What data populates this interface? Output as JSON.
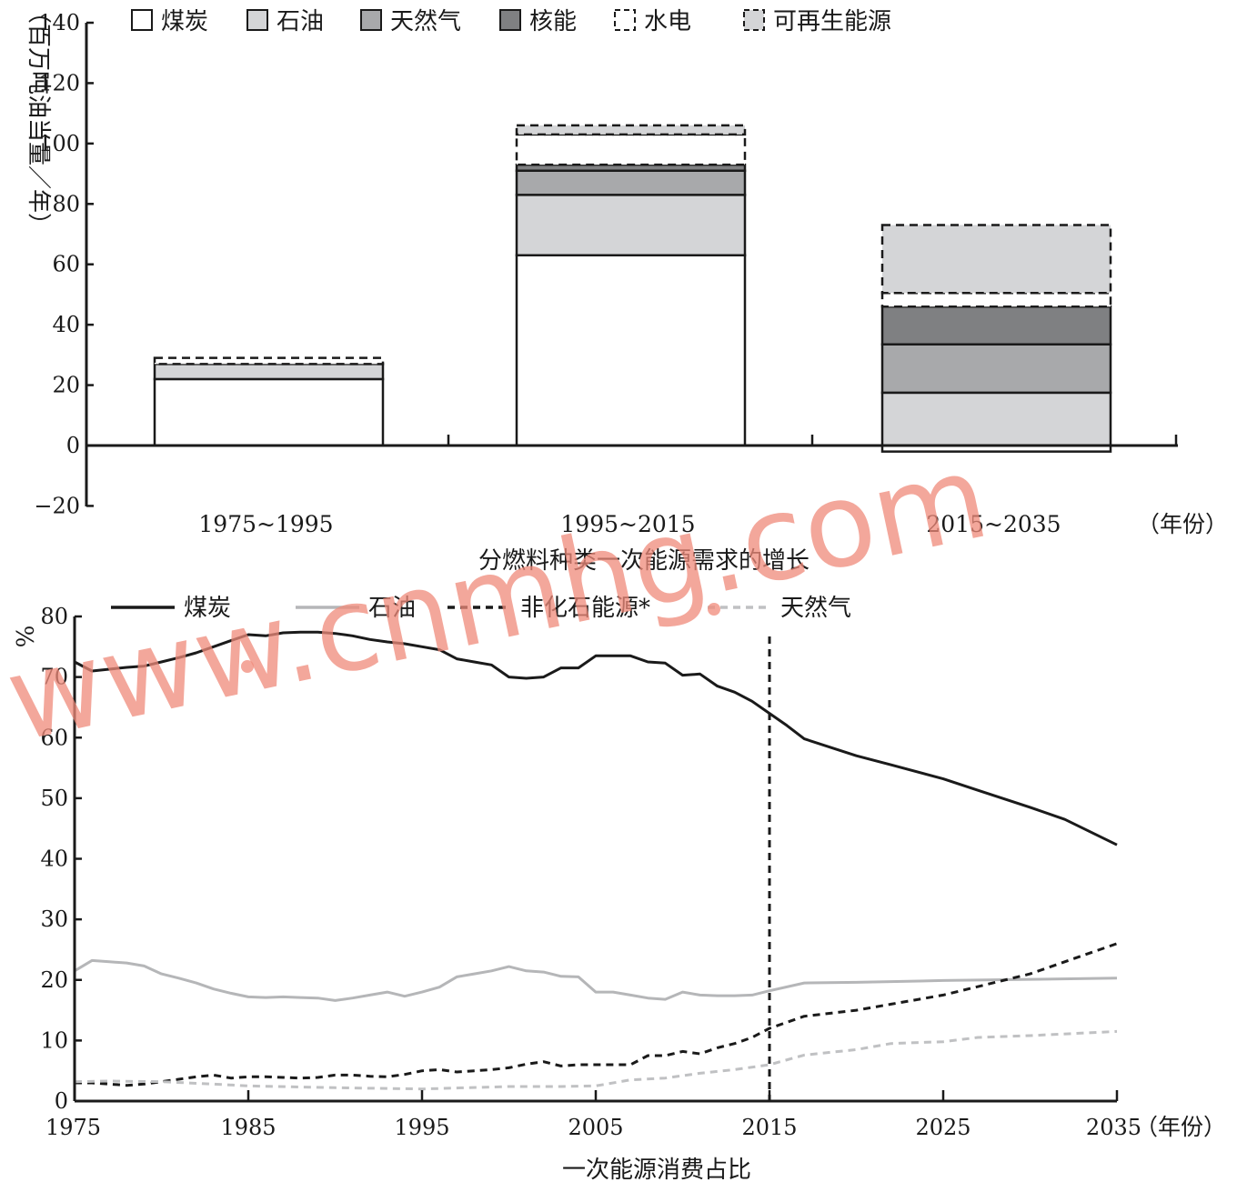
{
  "chart_data": [
    {
      "type": "bar",
      "stacked": true,
      "title": "分燃料种类一次能源需求的增长",
      "ylabel": "（百万吨油当量／年）",
      "xlabel": "（年份）",
      "ylim": [
        -20,
        140
      ],
      "yticks": [
        "−20",
        "0",
        "20",
        "40",
        "60",
        "80",
        "100",
        "120",
        "140"
      ],
      "categories": [
        "1975~1995",
        "1995~2015",
        "2015~2035"
      ],
      "legend_position": "top",
      "series": [
        {
          "name": "煤炭",
          "fill": "#ffffff",
          "dashed": false,
          "values": [
            22,
            63,
            -2
          ]
        },
        {
          "name": "石油",
          "fill": "#d4d5d7",
          "dashed": false,
          "values": [
            5,
            20,
            17.5
          ]
        },
        {
          "name": "天然气",
          "fill": "#a8a9ab",
          "dashed": false,
          "values": [
            0,
            8,
            16
          ]
        },
        {
          "name": "核能",
          "fill": "#7f8082",
          "dashed": false,
          "values": [
            0,
            2,
            12.5
          ]
        },
        {
          "name": "水电",
          "fill": "#ffffff",
          "dashed": true,
          "values": [
            2,
            10,
            4.5
          ]
        },
        {
          "name": "可再生能源",
          "fill": "#d4d5d7",
          "dashed": true,
          "values": [
            0,
            3,
            22.5
          ]
        }
      ]
    },
    {
      "type": "line",
      "title": "一次能源消费占比",
      "ylabel": "%",
      "xlabel": "（年份）",
      "ylim": [
        0,
        80
      ],
      "xlim": [
        1975,
        2035
      ],
      "xticks": [
        1975,
        1985,
        1995,
        2005,
        2015,
        2025,
        2035
      ],
      "yticks": [
        0,
        10,
        20,
        30,
        40,
        50,
        60,
        70,
        80
      ],
      "vline": 2015,
      "legend_position": "top",
      "series": [
        {
          "name": "煤炭",
          "color": "#1a1a1a",
          "dash": "",
          "width": 3,
          "points": [
            [
              1975,
              72.5
            ],
            [
              1976,
              71
            ],
            [
              1977,
              71.3
            ],
            [
              1978,
              71.6
            ],
            [
              1979,
              71.8
            ],
            [
              1980,
              72.5
            ],
            [
              1981,
              73.2
            ],
            [
              1982,
              74
            ],
            [
              1983,
              75
            ],
            [
              1984,
              76
            ],
            [
              1985,
              77
            ],
            [
              1986,
              76.8
            ],
            [
              1987,
              77.3
            ],
            [
              1988,
              77.4
            ],
            [
              1989,
              77.4
            ],
            [
              1990,
              77.2
            ],
            [
              1991,
              76.8
            ],
            [
              1992,
              76.2
            ],
            [
              1993,
              75.8
            ],
            [
              1994,
              75.5
            ],
            [
              1995,
              75
            ],
            [
              1996,
              74.5
            ],
            [
              1997,
              73
            ],
            [
              1998,
              72.5
            ],
            [
              1999,
              72
            ],
            [
              2000,
              70
            ],
            [
              2001,
              69.8
            ],
            [
              2002,
              70
            ],
            [
              2003,
              71.5
            ],
            [
              2004,
              71.5
            ],
            [
              2005,
              73.5
            ],
            [
              2006,
              73.5
            ],
            [
              2007,
              73.5
            ],
            [
              2008,
              72.5
            ],
            [
              2009,
              72.3
            ],
            [
              2010,
              70.3
            ],
            [
              2011,
              70.5
            ],
            [
              2012,
              68.5
            ],
            [
              2013,
              67.5
            ],
            [
              2014,
              66
            ],
            [
              2015,
              64
            ],
            [
              2016,
              62
            ],
            [
              2017,
              59.8
            ],
            [
              2020,
              57
            ],
            [
              2022,
              55.5
            ],
            [
              2025,
              53.2
            ],
            [
              2027,
              51.3
            ],
            [
              2030,
              48.5
            ],
            [
              2032,
              46.5
            ],
            [
              2035,
              42.3
            ]
          ]
        },
        {
          "name": "石油",
          "color": "#b5b6b8",
          "dash": "",
          "width": 3,
          "points": [
            [
              1975,
              21.5
            ],
            [
              1976,
              23.2
            ],
            [
              1977,
              23
            ],
            [
              1978,
              22.8
            ],
            [
              1979,
              22.3
            ],
            [
              1980,
              21
            ],
            [
              1981,
              20.3
            ],
            [
              1982,
              19.5
            ],
            [
              1983,
              18.5
            ],
            [
              1984,
              17.8
            ],
            [
              1985,
              17.2
            ],
            [
              1986,
              17.1
            ],
            [
              1987,
              17.2
            ],
            [
              1988,
              17.1
            ],
            [
              1989,
              17
            ],
            [
              1990,
              16.6
            ],
            [
              1991,
              17
            ],
            [
              1992,
              17.5
            ],
            [
              1993,
              18
            ],
            [
              1994,
              17.3
            ],
            [
              1995,
              18
            ],
            [
              1996,
              18.8
            ],
            [
              1997,
              20.5
            ],
            [
              1998,
              21
            ],
            [
              1999,
              21.5
            ],
            [
              2000,
              22.2
            ],
            [
              2001,
              21.5
            ],
            [
              2002,
              21.3
            ],
            [
              2003,
              20.6
            ],
            [
              2004,
              20.5
            ],
            [
              2005,
              18
            ],
            [
              2006,
              18
            ],
            [
              2007,
              17.5
            ],
            [
              2008,
              17
            ],
            [
              2009,
              16.8
            ],
            [
              2010,
              18
            ],
            [
              2011,
              17.5
            ],
            [
              2012,
              17.4
            ],
            [
              2013,
              17.4
            ],
            [
              2014,
              17.5
            ],
            [
              2015,
              18.2
            ],
            [
              2017,
              19.5
            ],
            [
              2020,
              19.6
            ],
            [
              2025,
              19.9
            ],
            [
              2030,
              20.1
            ],
            [
              2035,
              20.3
            ]
          ]
        },
        {
          "name": "非化石能源*",
          "color": "#1a1a1a",
          "dash": "8 6",
          "width": 3,
          "points": [
            [
              1975,
              3
            ],
            [
              1976,
              3
            ],
            [
              1977,
              2.8
            ],
            [
              1978,
              2.6
            ],
            [
              1979,
              2.8
            ],
            [
              1980,
              3.2
            ],
            [
              1981,
              3.6
            ],
            [
              1982,
              4
            ],
            [
              1983,
              4.3
            ],
            [
              1984,
              3.8
            ],
            [
              1985,
              4
            ],
            [
              1986,
              4
            ],
            [
              1987,
              3.9
            ],
            [
              1988,
              3.8
            ],
            [
              1989,
              3.9
            ],
            [
              1990,
              4.3
            ],
            [
              1991,
              4.3
            ],
            [
              1992,
              4.1
            ],
            [
              1993,
              4
            ],
            [
              1994,
              4.4
            ],
            [
              1995,
              5
            ],
            [
              1996,
              5.2
            ],
            [
              1997,
              4.8
            ],
            [
              1998,
              5
            ],
            [
              1999,
              5.2
            ],
            [
              2000,
              5.5
            ],
            [
              2001,
              6.1
            ],
            [
              2002,
              6.5
            ],
            [
              2003,
              5.8
            ],
            [
              2004,
              6
            ],
            [
              2005,
              6
            ],
            [
              2006,
              6
            ],
            [
              2007,
              6
            ],
            [
              2008,
              7.5
            ],
            [
              2009,
              7.5
            ],
            [
              2010,
              8.2
            ],
            [
              2011,
              7.8
            ],
            [
              2012,
              8.8
            ],
            [
              2013,
              9.5
            ],
            [
              2014,
              10.5
            ],
            [
              2015,
              12
            ],
            [
              2017,
              14
            ],
            [
              2020,
              15
            ],
            [
              2022,
              16
            ],
            [
              2025,
              17.5
            ],
            [
              2030,
              21
            ],
            [
              2035,
              26
            ]
          ]
        },
        {
          "name": "天然气",
          "color": "#c0c1c3",
          "dash": "8 6",
          "width": 3,
          "points": [
            [
              1975,
              3.2
            ],
            [
              1977,
              3.3
            ],
            [
              1980,
              3.2
            ],
            [
              1983,
              2.8
            ],
            [
              1985,
              2.5
            ],
            [
              1990,
              2.2
            ],
            [
              1995,
              2
            ],
            [
              2000,
              2.4
            ],
            [
              2003,
              2.4
            ],
            [
              2005,
              2.5
            ],
            [
              2007,
              3.5
            ],
            [
              2009,
              3.8
            ],
            [
              2011,
              4.6
            ],
            [
              2013,
              5.2
            ],
            [
              2015,
              6
            ],
            [
              2017,
              7.6
            ],
            [
              2020,
              8.5
            ],
            [
              2022,
              9.5
            ],
            [
              2025,
              9.8
            ],
            [
              2027,
              10.5
            ],
            [
              2030,
              10.8
            ],
            [
              2035,
              11.5
            ]
          ]
        }
      ]
    }
  ]
}
